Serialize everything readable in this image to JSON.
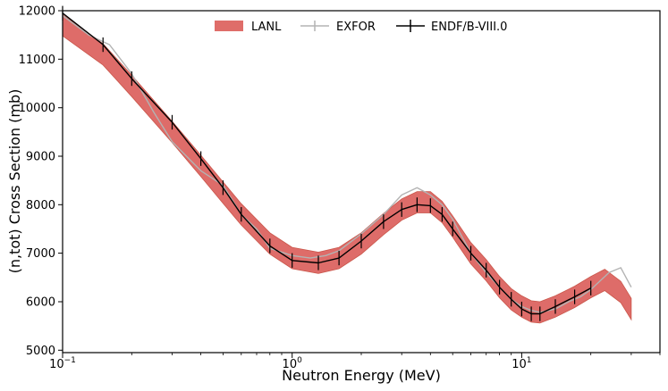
{
  "chart_data": {
    "type": "line",
    "title": "",
    "xlabel": "Neutron Energy (MeV)",
    "ylabel": "(n,tot) Cross Section (mb)",
    "xscale": "log",
    "xlim": [
      0.1,
      40
    ],
    "ylim": [
      4950,
      12000
    ],
    "grid": false,
    "legend_position": "top-center",
    "x_tick_labels": [
      {
        "value": 0.1,
        "base": "10",
        "exp": "−1"
      },
      {
        "value": 1,
        "base": "10",
        "exp": "0"
      },
      {
        "value": 10,
        "base": "10",
        "exp": "1"
      }
    ],
    "y_ticks": [
      5000,
      6000,
      7000,
      8000,
      9000,
      10000,
      11000,
      12000
    ],
    "y_tick_labels": [
      "5000",
      "6000",
      "7000",
      "8000",
      "9000",
      "10000",
      "11000",
      "12000"
    ],
    "series": [
      {
        "name": "LANL",
        "style": "band",
        "color": "#d9534f",
        "x": [
          0.1,
          0.15,
          0.2,
          0.3,
          0.4,
          0.5,
          0.6,
          0.8,
          1.0,
          1.3,
          1.6,
          2.0,
          2.5,
          3.0,
          3.5,
          4.0,
          4.5,
          5.0,
          6.0,
          7.0,
          8.0,
          9.0,
          10.0,
          11.0,
          12.0,
          14.0,
          17.0,
          20.0,
          23.0,
          27.0,
          30.0
        ],
        "y": [
          11700,
          11100,
          10450,
          9500,
          8800,
          8250,
          7800,
          7200,
          6900,
          6800,
          6900,
          7200,
          7600,
          7900,
          8050,
          8050,
          7850,
          7550,
          7000,
          6650,
          6300,
          6050,
          5900,
          5800,
          5780,
          5900,
          6100,
          6300,
          6450,
          6200,
          5850
        ],
        "half_width": 220
      },
      {
        "name": "EXFOR",
        "style": "line",
        "color": "#b3b3b3",
        "x": [
          0.1,
          0.13,
          0.16,
          0.2,
          0.25,
          0.3,
          0.4,
          0.5,
          0.6,
          0.7,
          0.8,
          1.0,
          1.2,
          1.4,
          1.6,
          2.0,
          2.5,
          3.0,
          3.5,
          4.0,
          4.5,
          5.0,
          6.0,
          7.0,
          8.0,
          9.0,
          10.0,
          11.0,
          12.0,
          14.0,
          16.0,
          18.0,
          20.0,
          24.0,
          27.0,
          30.0
        ],
        "y": [
          11900,
          11500,
          11300,
          10700,
          9900,
          9300,
          8700,
          8400,
          7800,
          7500,
          7100,
          6950,
          6900,
          6950,
          7050,
          7400,
          7800,
          8200,
          8350,
          8200,
          8000,
          7700,
          7000,
          6600,
          6300,
          6050,
          5900,
          5820,
          5780,
          5850,
          6000,
          6100,
          6250,
          6600,
          6700,
          6300
        ]
      },
      {
        "name": "ENDF/B-VIII.0",
        "style": "line-with-errorbars",
        "color": "#000000",
        "x": [
          0.1,
          0.15,
          0.2,
          0.3,
          0.4,
          0.5,
          0.6,
          0.8,
          1.0,
          1.3,
          1.6,
          2.0,
          2.5,
          3.0,
          3.5,
          4.0,
          4.5,
          5.0,
          6.0,
          7.0,
          8.0,
          9.0,
          10.0,
          11.0,
          12.0,
          14.0,
          17.0,
          20.0
        ],
        "y": [
          11950,
          11300,
          10600,
          9700,
          8950,
          8350,
          7800,
          7150,
          6850,
          6800,
          6900,
          7250,
          7650,
          7900,
          8000,
          7980,
          7800,
          7500,
          7000,
          6650,
          6300,
          6050,
          5850,
          5750,
          5750,
          5900,
          6100,
          6280
        ],
        "error": 150
      }
    ]
  }
}
